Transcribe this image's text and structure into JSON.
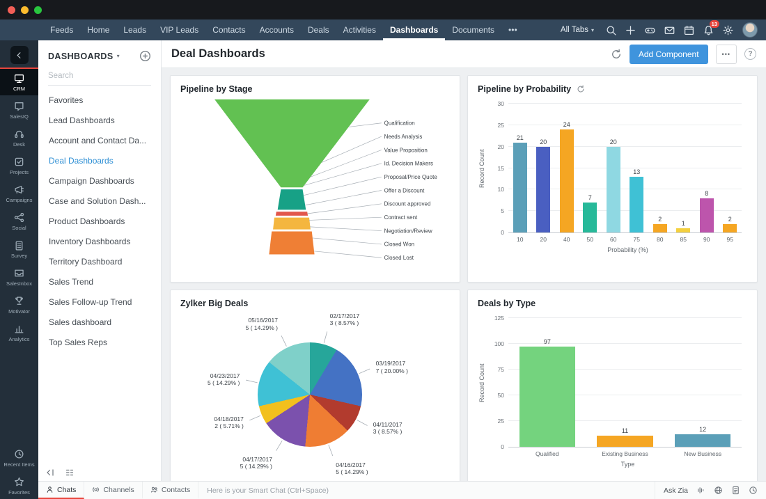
{
  "window": {
    "controls": [
      "close",
      "minimize",
      "maximize"
    ]
  },
  "nav": {
    "tabs": [
      {
        "label": "Feeds"
      },
      {
        "label": "Home"
      },
      {
        "label": "Leads"
      },
      {
        "label": "VIP Leads"
      },
      {
        "label": "Contacts"
      },
      {
        "label": "Accounts"
      },
      {
        "label": "Deals"
      },
      {
        "label": "Activities"
      },
      {
        "label": "Dashboards",
        "active": true
      },
      {
        "label": "Documents"
      },
      {
        "label": "•••",
        "name": "more-tabs"
      }
    ],
    "all_tabs_label": "All Tabs",
    "notification_badge": "13",
    "icons": [
      "search",
      "plus",
      "game",
      "mail",
      "calendar",
      "bell",
      "gear"
    ]
  },
  "rail": {
    "items": [
      {
        "label": "CRM",
        "icon": "crm",
        "active": true
      },
      {
        "label": "SalesIQ",
        "icon": "salesiq"
      },
      {
        "label": "Desk",
        "icon": "desk"
      },
      {
        "label": "Projects",
        "icon": "projects"
      },
      {
        "label": "Campaigns",
        "icon": "campaigns"
      },
      {
        "label": "Social",
        "icon": "social"
      },
      {
        "label": "Survey",
        "icon": "survey"
      },
      {
        "label": "SalesInbox",
        "icon": "salesinbox"
      },
      {
        "label": "Motivator",
        "icon": "motivator"
      },
      {
        "label": "Analytics",
        "icon": "analytics"
      }
    ],
    "footer_items": [
      {
        "label": "Recent Items",
        "icon": "clock"
      },
      {
        "label": "Favorites",
        "icon": "star"
      }
    ]
  },
  "sidebar": {
    "title": "DASHBOARDS",
    "search_placeholder": "Search",
    "items": [
      {
        "label": "Favorites"
      },
      {
        "label": "Lead Dashboards"
      },
      {
        "label": "Account and Contact Da..."
      },
      {
        "label": "Deal Dashboards",
        "active": true
      },
      {
        "label": "Campaign Dashboards"
      },
      {
        "label": "Case and Solution Dash..."
      },
      {
        "label": "Product Dashboards"
      },
      {
        "label": "Inventory Dashboards"
      },
      {
        "label": "Territory Dashboard"
      },
      {
        "label": "Sales Trend"
      },
      {
        "label": "Sales Follow-up Trend"
      },
      {
        "label": "Sales dashboard"
      },
      {
        "label": "Top Sales Reps"
      }
    ]
  },
  "header": {
    "title": "Deal Dashboards",
    "add_component_label": "Add Component",
    "more_label": "•••",
    "help_label": "?"
  },
  "chat_bar": {
    "tabs": [
      {
        "label": "Chats",
        "icon": "person",
        "active": true
      },
      {
        "label": "Channels",
        "icon": "channels"
      },
      {
        "label": "Contacts",
        "icon": "contacts"
      }
    ],
    "input_placeholder": "Here is your Smart Chat (Ctrl+Space)",
    "ask_zia_label": "Ask Zia",
    "right_icons": [
      "zia-voice",
      "translate",
      "document",
      "history"
    ]
  },
  "accent_colors": {
    "primary_blue": "#3f94dd",
    "nav_dark": "#33475b",
    "badge_red": "#e8453c",
    "active_link_blue": "#2e8fd4"
  },
  "chart_data": [
    {
      "type": "funnel",
      "title": "Pipeline by Stage",
      "stages": [
        "Qualification",
        "Needs Analysis",
        "Value Proposition",
        "Id. Decision Makers",
        "Proposal/Price Quote",
        "Offer a Discount",
        "Discount approved",
        "Contract sent",
        "Negotiation/Review",
        "Closed Won",
        "Closed Lost"
      ],
      "segment_colors": [
        "#62c152",
        "#17a186",
        "#e2574c",
        "#f4b63f",
        "#ef7f35"
      ]
    },
    {
      "type": "bar",
      "title": "Pipeline by Probability",
      "categories": [
        "10",
        "20",
        "40",
        "50",
        "60",
        "75",
        "80",
        "85",
        "90",
        "95"
      ],
      "values": [
        21,
        20,
        24,
        7,
        20,
        13,
        2,
        1,
        8,
        2
      ],
      "colors": [
        "#5b9fb8",
        "#4a5fc1",
        "#f5a623",
        "#27b999",
        "#8fd8e2",
        "#3fc1d5",
        "#f5a623",
        "#f4d03f",
        "#bd55ac",
        "#f5a623"
      ],
      "xlabel": "Probability (%)",
      "ylabel": "Record Count",
      "yticks": [
        0,
        5,
        10,
        15,
        20,
        25,
        30
      ],
      "ylim": [
        0,
        30
      ],
      "grid": true,
      "legend": false
    },
    {
      "type": "pie",
      "title": "Zylker Big Deals",
      "total": 35,
      "slices": [
        {
          "label": "02/17/2017",
          "value": 3,
          "pct": 8.57,
          "value_label": "3 ( 8.57% )",
          "color": "#26a69a"
        },
        {
          "label": "03/19/2017",
          "value": 7,
          "pct": 20.0,
          "value_label": "7 ( 20.00% )",
          "color": "#4472c4"
        },
        {
          "label": "04/11/2017",
          "value": 3,
          "pct": 8.57,
          "value_label": "3 ( 8.57% )",
          "color": "#b23b2e"
        },
        {
          "label": "04/16/2017",
          "value": 5,
          "pct": 14.29,
          "value_label": "5 ( 14.29% )",
          "color": "#ef7d33"
        },
        {
          "label": "04/17/2017",
          "value": 5,
          "pct": 14.29,
          "value_label": "5 ( 14.29% )",
          "color": "#7b51ad"
        },
        {
          "label": "04/18/2017",
          "value": 2,
          "pct": 5.71,
          "value_label": "2 ( 5.71% )",
          "color": "#f2c01d"
        },
        {
          "label": "04/23/2017",
          "value": 5,
          "pct": 14.29,
          "value_label": "5 ( 14.29% )",
          "color": "#3fc1d5"
        },
        {
          "label": "05/16/2017",
          "value": 5,
          "pct": 14.29,
          "value_label": "5 ( 14.29% )",
          "color": "#7fd0c9"
        }
      ],
      "legend": false
    },
    {
      "type": "bar",
      "title": "Deals by Type",
      "categories": [
        "Qualified",
        "Existing Business",
        "New Business"
      ],
      "values": [
        97,
        11,
        12
      ],
      "colors": [
        "#74d37e",
        "#f5a623",
        "#5b9fb8"
      ],
      "xlabel": "Type",
      "ylabel": "Record Count",
      "yticks": [
        0,
        25,
        50,
        75,
        100,
        125
      ],
      "ylim": [
        0,
        125
      ],
      "grid": true,
      "legend": false
    }
  ]
}
